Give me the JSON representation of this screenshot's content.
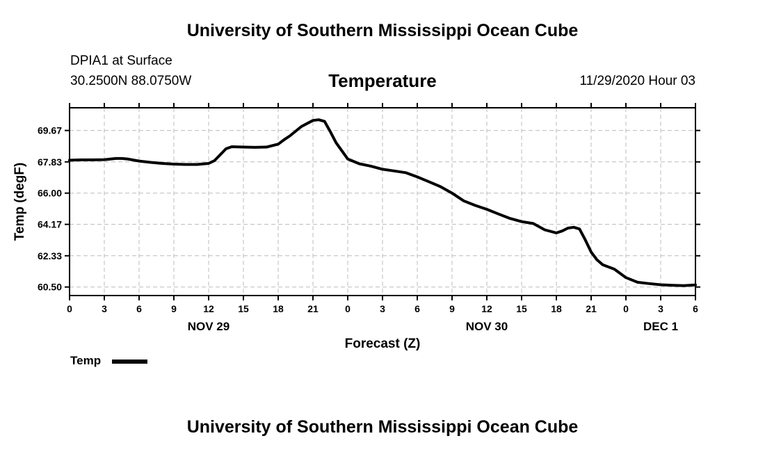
{
  "page": {
    "top_title": "University of Southern Mississippi Ocean Cube",
    "bottom_title": "University of Southern Mississippi Ocean Cube",
    "station": "DPIA1 at Surface",
    "coords": "30.2500N 88.0750W",
    "subtitle": "Temperature",
    "datetime": "11/29/2020 Hour 03"
  },
  "legend": {
    "label": "Temp",
    "color": "#000000"
  },
  "chart_data": {
    "type": "line",
    "title": "Temperature",
    "xlabel": "Forecast (Z)",
    "ylabel": "Temp (degF)",
    "xlim": [
      0,
      54
    ],
    "ylim": [
      60.0,
      71.0
    ],
    "yticks": [
      "60.50",
      "62.33",
      "64.17",
      "66.00",
      "67.83",
      "69.67"
    ],
    "xticks": [
      {
        "x": 0,
        "label": "0"
      },
      {
        "x": 3,
        "label": "3"
      },
      {
        "x": 6,
        "label": "6"
      },
      {
        "x": 9,
        "label": "9"
      },
      {
        "x": 12,
        "label": "12"
      },
      {
        "x": 15,
        "label": "15"
      },
      {
        "x": 18,
        "label": "18"
      },
      {
        "x": 21,
        "label": "21"
      },
      {
        "x": 24,
        "label": "0"
      },
      {
        "x": 27,
        "label": "3"
      },
      {
        "x": 30,
        "label": "6"
      },
      {
        "x": 33,
        "label": "9"
      },
      {
        "x": 36,
        "label": "12"
      },
      {
        "x": 39,
        "label": "15"
      },
      {
        "x": 42,
        "label": "18"
      },
      {
        "x": 45,
        "label": "21"
      },
      {
        "x": 48,
        "label": "0"
      },
      {
        "x": 51,
        "label": "3"
      },
      {
        "x": 54,
        "label": "6"
      }
    ],
    "date_labels": [
      {
        "x": 12,
        "label": "NOV 29"
      },
      {
        "x": 36,
        "label": "NOV 30"
      },
      {
        "x": 51,
        "label": "DEC 1"
      }
    ],
    "grid": true,
    "series": [
      {
        "name": "Temp",
        "x": [
          0,
          1,
          2,
          3,
          4,
          4.5,
          5,
          6,
          7,
          8,
          9,
          10,
          11,
          12,
          12.5,
          13,
          13.5,
          14,
          15,
          16,
          17,
          18,
          18.5,
          19,
          20,
          21,
          21.5,
          22,
          22.5,
          23,
          24,
          25,
          26,
          27,
          28,
          29,
          30,
          31,
          32,
          33,
          34,
          35,
          36,
          37,
          38,
          39,
          40,
          41,
          42,
          42.5,
          43,
          43.5,
          44,
          44.5,
          45,
          45.5,
          46,
          47,
          48,
          49,
          50,
          51,
          52,
          53,
          54
        ],
        "values": [
          67.93,
          67.95,
          67.95,
          67.96,
          68.03,
          68.03,
          68.0,
          67.88,
          67.8,
          67.74,
          67.7,
          67.68,
          67.68,
          67.74,
          67.9,
          68.25,
          68.6,
          68.72,
          68.7,
          68.68,
          68.7,
          68.87,
          69.12,
          69.35,
          69.9,
          70.26,
          70.3,
          70.2,
          69.6,
          68.95,
          68.0,
          67.72,
          67.58,
          67.4,
          67.3,
          67.2,
          66.95,
          66.67,
          66.38,
          66.0,
          65.55,
          65.28,
          65.05,
          64.78,
          64.52,
          64.33,
          64.22,
          63.85,
          63.67,
          63.78,
          63.95,
          64.0,
          63.9,
          63.25,
          62.55,
          62.1,
          61.8,
          61.55,
          61.05,
          60.78,
          60.7,
          60.63,
          60.6,
          60.58,
          60.62
        ]
      }
    ]
  }
}
